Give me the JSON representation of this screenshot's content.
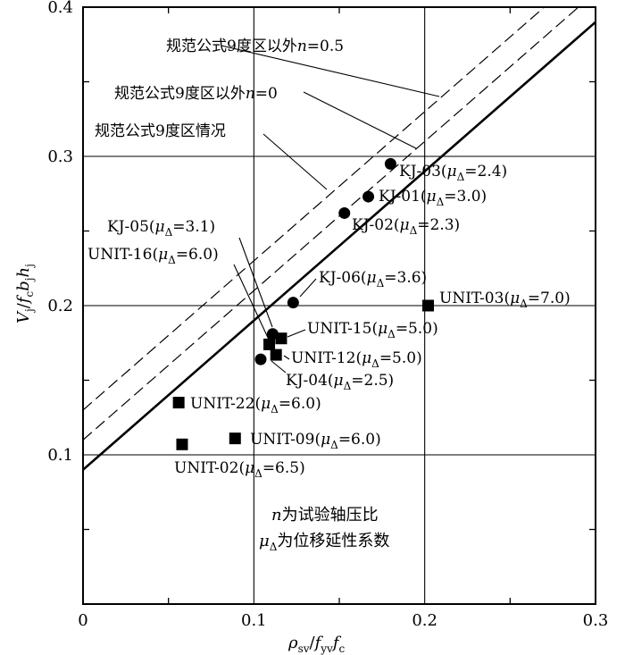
{
  "chart_data": {
    "type": "scatter",
    "title": "",
    "xlabel": "ρsv/fyvfc",
    "ylabel": "Vj/fcbjhj",
    "xlim": [
      0,
      0.3
    ],
    "ylim": [
      0,
      0.4
    ],
    "xticks": [
      "0",
      "0.1",
      "0.2",
      "0.3"
    ],
    "yticks": [
      "0.1",
      "0.2",
      "0.3",
      "0.4"
    ],
    "grid": true,
    "series": [
      {
        "marker": "circle",
        "points": [
          {
            "x": 0.18,
            "y": 0.295,
            "label": "KJ-03(μΔ=2.4)"
          },
          {
            "x": 0.167,
            "y": 0.273,
            "label": "KJ-01(μΔ=3.0)"
          },
          {
            "x": 0.153,
            "y": 0.262,
            "label": "KJ-02(μΔ=2.3)"
          },
          {
            "x": 0.123,
            "y": 0.202,
            "label": "KJ-06(μΔ=3.6)"
          },
          {
            "x": 0.111,
            "y": 0.181,
            "label": "KJ-05(μΔ=3.1)"
          },
          {
            "x": 0.104,
            "y": 0.164,
            "label": "KJ-04(μΔ=2.5)"
          }
        ]
      },
      {
        "marker": "square",
        "points": [
          {
            "x": 0.202,
            "y": 0.2,
            "label": "UNIT-03(μΔ=7.0)"
          },
          {
            "x": 0.116,
            "y": 0.178,
            "label": "UNIT-15(μΔ=5.0)"
          },
          {
            "x": 0.109,
            "y": 0.174,
            "label": "UNIT-16(μΔ=6.0)"
          },
          {
            "x": 0.113,
            "y": 0.167,
            "label": "UNIT-12(μΔ=5.0)"
          },
          {
            "x": 0.056,
            "y": 0.135,
            "label": "UNIT-22(μΔ=6.0)"
          },
          {
            "x": 0.089,
            "y": 0.111,
            "label": "UNIT-09(μΔ=6.0)"
          },
          {
            "x": 0.058,
            "y": 0.107,
            "label": "UNIT-02(μΔ=6.5)"
          }
        ]
      }
    ],
    "lines": [
      {
        "name": "规范公式9度区以外n=0.5",
        "style": "dashed",
        "points": [
          [
            0,
            0.13
          ],
          [
            0.3,
            0.43
          ]
        ]
      },
      {
        "name": "规范公式9度区以外n=0",
        "style": "dashed",
        "points": [
          [
            0,
            0.11
          ],
          [
            0.3,
            0.41
          ]
        ]
      },
      {
        "name": "规范公式9度区情况",
        "style": "solid",
        "points": [
          [
            0,
            0.09
          ],
          [
            0.3,
            0.39
          ]
        ]
      }
    ],
    "legend_text": [
      "n为试验轴压比",
      "μΔ为位移延性系数"
    ]
  }
}
